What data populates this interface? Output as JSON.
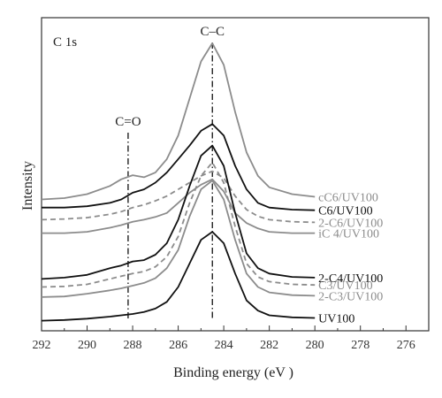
{
  "chart_data": {
    "type": "line",
    "panel_label": "C 1s",
    "xlabel": "Binding energy (eV )",
    "ylabel": "Intensity",
    "xlim": [
      292,
      275
    ],
    "x_reversed": true,
    "x_ticks": [
      292,
      290,
      288,
      286,
      284,
      282,
      280,
      278,
      276
    ],
    "y_ticks_shown": false,
    "grid": false,
    "reference_lines": [
      {
        "label": "C=O",
        "x": 288.2
      },
      {
        "label": "C–C",
        "x": 284.5
      }
    ],
    "x": [
      292.0,
      291.0,
      290.0,
      289.0,
      288.5,
      288.0,
      287.5,
      287.0,
      286.5,
      286.0,
      285.5,
      285.0,
      284.5,
      284.0,
      283.5,
      283.0,
      282.5,
      282.0,
      281.0,
      280.0
    ],
    "series": [
      {
        "name": "cC6/UV100",
        "color": "#8c8c8c",
        "dashed": false,
        "label_color": "#8c8c8c",
        "values": [
          0.6,
          0.62,
          0.68,
          0.8,
          0.9,
          0.96,
          0.93,
          1.0,
          1.2,
          1.55,
          2.1,
          2.65,
          2.92,
          2.6,
          1.9,
          1.3,
          0.95,
          0.78,
          0.68,
          0.64
        ]
      },
      {
        "name": "C6/UV100",
        "color": "#111111",
        "dashed": false,
        "label_color": "#111111",
        "values": [
          0.48,
          0.48,
          0.5,
          0.55,
          0.6,
          0.7,
          0.75,
          0.85,
          1.0,
          1.2,
          1.4,
          1.62,
          1.72,
          1.55,
          1.1,
          0.75,
          0.55,
          0.48,
          0.45,
          0.44
        ]
      },
      {
        "name": "2-C6/UV100",
        "color": "#8c8c8c",
        "dashed": true,
        "label_color": "#8c8c8c",
        "values": [
          0.3,
          0.31,
          0.33,
          0.38,
          0.42,
          0.48,
          0.52,
          0.58,
          0.65,
          0.75,
          0.85,
          0.95,
          1.02,
          0.92,
          0.65,
          0.45,
          0.35,
          0.3,
          0.27,
          0.26
        ]
      },
      {
        "name": "iC 4/UV100",
        "color": "#8c8c8c",
        "dashed": false,
        "label_color": "#8c8c8c",
        "values": [
          0.1,
          0.1,
          0.12,
          0.18,
          0.22,
          0.27,
          0.3,
          0.34,
          0.4,
          0.55,
          0.7,
          0.82,
          0.9,
          0.72,
          0.4,
          0.25,
          0.17,
          0.12,
          0.1,
          0.1
        ]
      },
      {
        "name": "2-C4/UV100",
        "color": "#111111",
        "dashed": false,
        "label_color": "#111111",
        "values": [
          -0.58,
          -0.56,
          -0.52,
          -0.42,
          -0.38,
          -0.32,
          -0.3,
          -0.22,
          -0.05,
          0.3,
          0.8,
          1.25,
          1.4,
          1.1,
          0.4,
          -0.2,
          -0.42,
          -0.5,
          -0.55,
          -0.56
        ]
      },
      {
        "name": "C3/UV100",
        "color": "#8c8c8c",
        "dashed": true,
        "label_color": "#8c8c8c",
        "values": [
          -0.7,
          -0.69,
          -0.66,
          -0.58,
          -0.54,
          -0.5,
          -0.47,
          -0.4,
          -0.25,
          0.05,
          0.55,
          0.95,
          1.15,
          0.85,
          0.2,
          -0.35,
          -0.55,
          -0.62,
          -0.66,
          -0.67
        ]
      },
      {
        "name": "2-C3/UV100",
        "color": "#8c8c8c",
        "dashed": false,
        "label_color": "#8c8c8c",
        "values": [
          -0.85,
          -0.84,
          -0.8,
          -0.75,
          -0.72,
          -0.68,
          -0.64,
          -0.57,
          -0.42,
          -0.15,
          0.35,
          0.75,
          0.88,
          0.6,
          0.0,
          -0.5,
          -0.7,
          -0.78,
          -0.82,
          -0.83
        ]
      },
      {
        "name": "UV100",
        "color": "#111111",
        "dashed": false,
        "label_color": "#111111",
        "values": [
          -1.2,
          -1.19,
          -1.17,
          -1.14,
          -1.12,
          -1.1,
          -1.07,
          -1.02,
          -0.92,
          -0.7,
          -0.35,
          0.0,
          0.12,
          -0.05,
          -0.5,
          -0.9,
          -1.05,
          -1.12,
          -1.15,
          -1.16
        ]
      }
    ],
    "ylim": [
      -1.35,
      3.3
    ]
  }
}
